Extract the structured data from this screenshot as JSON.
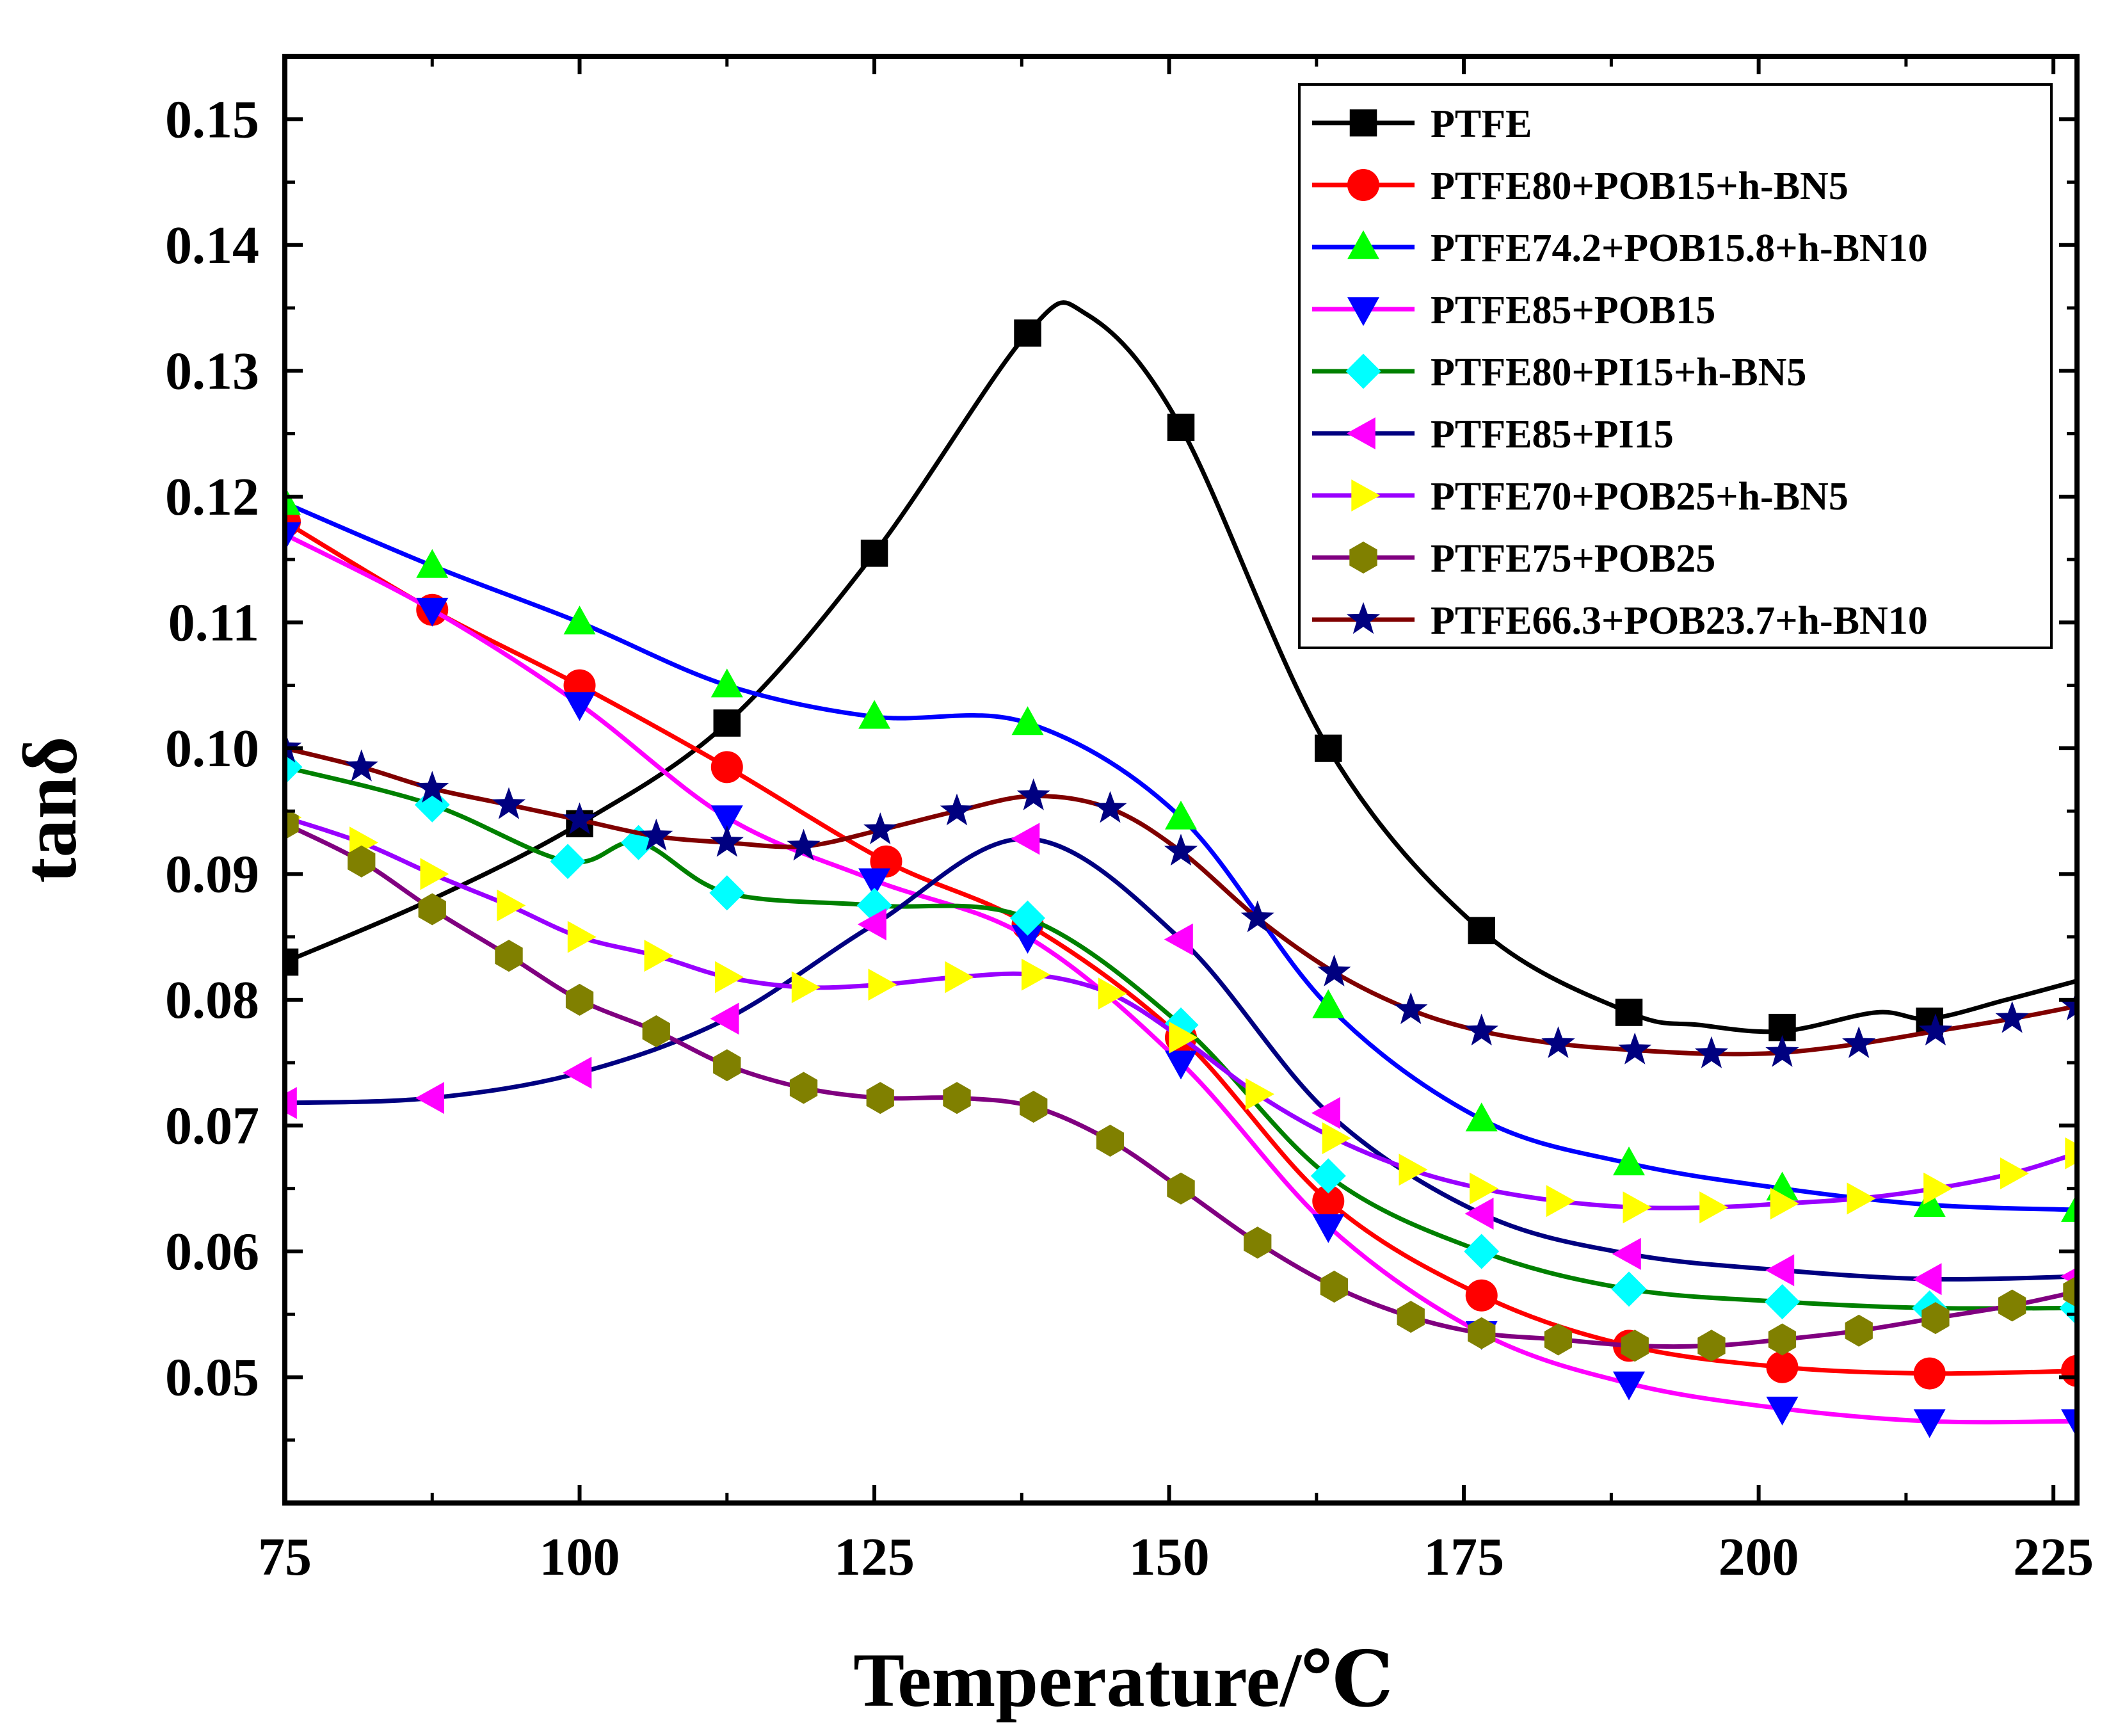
{
  "chart_data": {
    "type": "line",
    "xlabel": "Temperature/℃",
    "ylabel": "tanδ",
    "xlim": [
      75,
      227
    ],
    "ylim": [
      0.04,
      0.155
    ],
    "xticks": [
      "75",
      "100",
      "125",
      "150",
      "175",
      "200",
      "225"
    ],
    "yticks": [
      "0.05",
      "0.06",
      "0.07",
      "0.08",
      "0.09",
      "0.10",
      "0.11",
      "0.12",
      "0.13",
      "0.14",
      "0.15"
    ],
    "legend_position": "top-right",
    "grid": false,
    "series": [
      {
        "name": "PTFE",
        "color": "#000000",
        "marker": "square",
        "x": [
          75,
          87.5,
          100,
          112.5,
          125,
          138,
          143,
          151,
          163.5,
          176.5,
          189,
          195,
          202,
          210,
          214.5,
          221,
          227
        ],
        "y": [
          0.083,
          0.088,
          0.094,
          0.102,
          0.1155,
          0.133,
          0.1345,
          0.1255,
          0.1,
          0.0855,
          0.079,
          0.078,
          0.0775,
          0.079,
          0.0785,
          0.08,
          0.0815
        ],
        "markers_x": [
          75,
          100,
          112.5,
          125,
          138,
          151,
          163.5,
          176.5,
          189,
          202,
          214.5
        ],
        "markers_y": [
          0.083,
          0.094,
          0.102,
          0.1155,
          0.133,
          0.1255,
          0.1,
          0.0855,
          0.079,
          0.0778,
          0.0783
        ]
      },
      {
        "name": "PTFE80+POB15+h-BN5",
        "color": "#ff0000",
        "marker": "circle",
        "x": [
          75,
          87.5,
          100,
          112.5,
          126,
          138,
          151,
          163.5,
          176.5,
          189,
          202,
          214.5,
          227
        ],
        "y": [
          0.118,
          0.111,
          0.105,
          0.0985,
          0.091,
          0.086,
          0.077,
          0.064,
          0.0565,
          0.0525,
          0.0508,
          0.0503,
          0.0505
        ]
      },
      {
        "name": "PTFE74.2+POB15.8+h-BN10",
        "color": "#0000ff",
        "marker": "triangle-up",
        "x": [
          75,
          87.5,
          100,
          112.5,
          125,
          138,
          151,
          163.5,
          176.5,
          189,
          202,
          214.5,
          227
        ],
        "y": [
          0.1195,
          0.1145,
          0.11,
          0.105,
          0.1025,
          0.102,
          0.0945,
          0.0795,
          0.0705,
          0.067,
          0.065,
          0.0637,
          0.0633
        ]
      },
      {
        "name": "PTFE85+POB15",
        "color": "#ff00ff",
        "marker": "triangle-down",
        "x": [
          75,
          87.5,
          100,
          112.5,
          125,
          138,
          151,
          163.5,
          176.5,
          189,
          202,
          214.5,
          227
        ],
        "y": [
          0.117,
          0.111,
          0.1035,
          0.0945,
          0.0895,
          0.085,
          0.075,
          0.062,
          0.0535,
          0.0495,
          0.0475,
          0.0465,
          0.0465
        ]
      },
      {
        "name": "PTFE80+PI15+h-BN5",
        "color": "#008000",
        "marker": "diamond",
        "x": [
          75,
          87.5,
          99,
          105,
          112.5,
          125,
          138,
          151,
          163.5,
          176.5,
          189,
          202,
          214.5,
          227
        ],
        "y": [
          0.0985,
          0.0955,
          0.091,
          0.0925,
          0.0885,
          0.0875,
          0.0865,
          0.078,
          0.066,
          0.06,
          0.057,
          0.056,
          0.0555,
          0.0555
        ]
      },
      {
        "name": "PTFE85+PI15",
        "color": "#000080",
        "marker": "triangle-left",
        "x": [
          75,
          87.5,
          100,
          112.5,
          125,
          138,
          151,
          163.5,
          176.5,
          189,
          202,
          214.5,
          227
        ],
        "y": [
          0.0718,
          0.0722,
          0.0742,
          0.0785,
          0.086,
          0.0928,
          0.0848,
          0.071,
          0.063,
          0.0598,
          0.0585,
          0.0578,
          0.058
        ]
      },
      {
        "name": "PTFE70+POB25+h-BN5",
        "color": "#9900ff",
        "marker": "triangle-right",
        "x": [
          75,
          81.5,
          87.5,
          94,
          100,
          106.5,
          112.5,
          119,
          125.5,
          132,
          138.5,
          145,
          151,
          157.5,
          164,
          170.5,
          176.5,
          183,
          189.5,
          196,
          202,
          208.5,
          215,
          221.5,
          227
        ],
        "y": [
          0.0945,
          0.0925,
          0.09,
          0.0875,
          0.085,
          0.0835,
          0.0818,
          0.081,
          0.0812,
          0.0818,
          0.082,
          0.0805,
          0.077,
          0.0725,
          0.069,
          0.0665,
          0.065,
          0.064,
          0.0635,
          0.0635,
          0.0638,
          0.0642,
          0.065,
          0.0662,
          0.0678
        ]
      },
      {
        "name": "PTFE75+POB25",
        "color": "#800080",
        "marker": "hexagon",
        "x": [
          75,
          81.5,
          87.5,
          94,
          100,
          106.5,
          112.5,
          119,
          125.5,
          132,
          138.5,
          145,
          151,
          157.5,
          164,
          170.5,
          176.5,
          183,
          189.5,
          196,
          202,
          208.5,
          215,
          221.5,
          227
        ],
        "y": [
          0.094,
          0.091,
          0.0872,
          0.0835,
          0.08,
          0.0775,
          0.0748,
          0.073,
          0.0722,
          0.0722,
          0.0715,
          0.0688,
          0.065,
          0.0607,
          0.0572,
          0.0548,
          0.0535,
          0.053,
          0.0525,
          0.0525,
          0.053,
          0.0537,
          0.0547,
          0.0557,
          0.0568
        ]
      },
      {
        "name": "PTFE66.3+POB23.7+h-BN10",
        "color": "#800000",
        "marker": "star",
        "x": [
          75,
          81.5,
          87.5,
          94,
          100,
          106.5,
          112.5,
          119,
          125.5,
          132,
          138.5,
          145,
          151,
          157.5,
          164,
          170.5,
          176.5,
          183,
          189.5,
          196,
          202,
          208.5,
          215,
          221.5,
          227
        ],
        "y": [
          0.1,
          0.0985,
          0.0968,
          0.0955,
          0.0943,
          0.093,
          0.0925,
          0.0922,
          0.0935,
          0.095,
          0.0962,
          0.0952,
          0.0918,
          0.0865,
          0.0822,
          0.0792,
          0.0775,
          0.0765,
          0.076,
          0.0757,
          0.0758,
          0.0765,
          0.0775,
          0.0785,
          0.0795
        ]
      }
    ]
  }
}
